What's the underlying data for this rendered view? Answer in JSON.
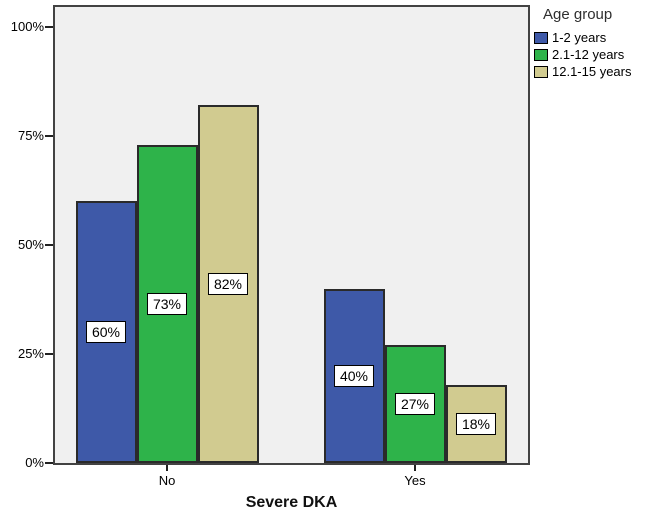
{
  "chart_data": {
    "type": "bar",
    "title": "",
    "xlabel": "Severe DKA",
    "ylabel": "",
    "categories": [
      "No",
      "Yes"
    ],
    "series": [
      {
        "name": "1-2 years",
        "color": "#3E59A8",
        "values": [
          60,
          40
        ],
        "labels": [
          "60%",
          "40%"
        ]
      },
      {
        "name": "2.1-12 years",
        "color": "#2EB34A",
        "values": [
          73,
          27
        ],
        "labels": [
          "73%",
          "27%"
        ]
      },
      {
        "name": "12.1-15 years",
        "color": "#D1CB90",
        "values": [
          82,
          18
        ],
        "labels": [
          "82%",
          "18%"
        ]
      }
    ],
    "legend": {
      "title": "Age group",
      "position": "top-right-outside"
    },
    "y_ticks": [
      {
        "value": 0,
        "label": "0%"
      },
      {
        "value": 25,
        "label": "25%"
      },
      {
        "value": 50,
        "label": "50%"
      },
      {
        "value": 75,
        "label": "75%"
      },
      {
        "value": 100,
        "label": "100%"
      }
    ],
    "ylim": [
      0,
      105
    ],
    "grid": false,
    "plot_background": "#F0F0F0",
    "frame_color": "#424242",
    "label_box_background": "#FFFFFF"
  }
}
